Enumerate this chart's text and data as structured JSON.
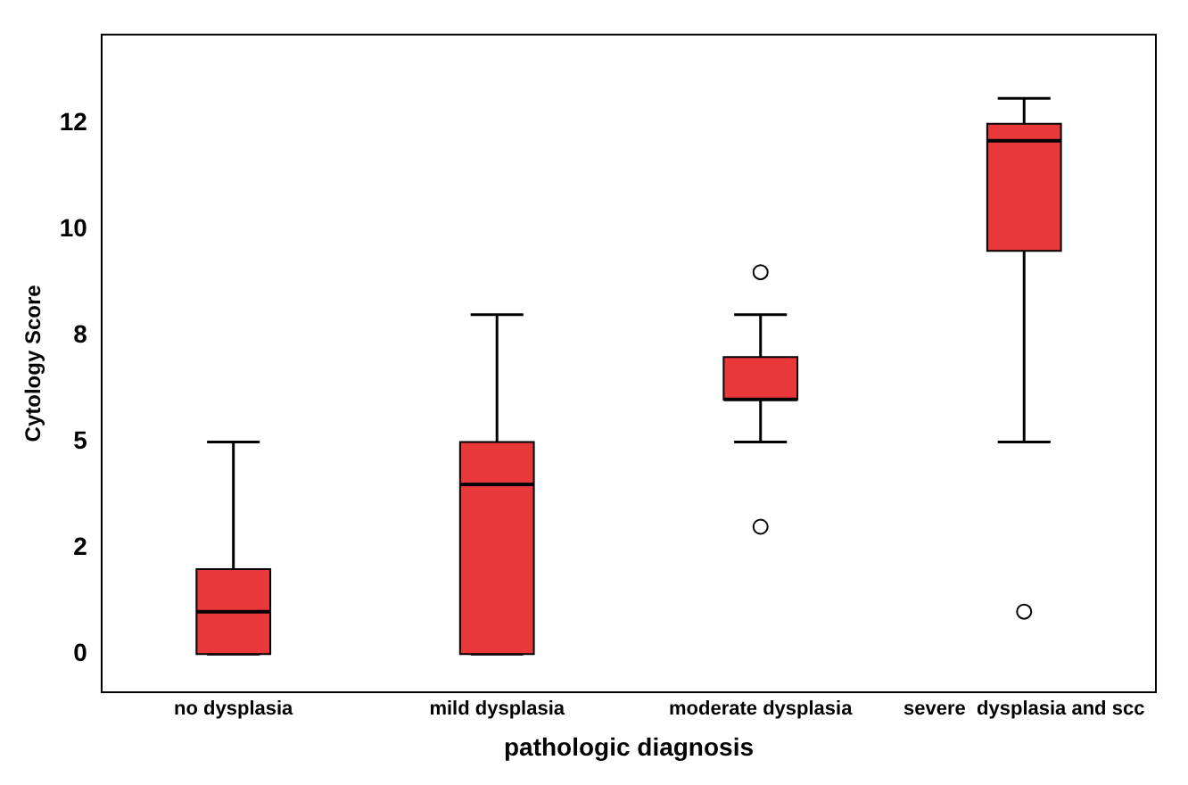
{
  "chart_data": {
    "type": "box",
    "xlabel": "pathologic diagnosis",
    "ylabel": "Cytology Score",
    "categories": [
      "no dysplasia",
      "mild dysplasia",
      "moderate dysplasia",
      "severe  dysplasia and scc"
    ],
    "color": "#e8383a",
    "boxes": [
      {
        "low": 0,
        "q1": 0,
        "median": 1.0,
        "q3": 2.0,
        "high": 5.0
      },
      {
        "low": 0,
        "q1": 0,
        "median": 4.0,
        "q3": 5.0,
        "high": 8.0
      },
      {
        "low": 5.0,
        "q1": 6.0,
        "median": 6.0,
        "q3": 7.0,
        "high": 8.0,
        "outliers": [
          9.0,
          3.0
        ]
      },
      {
        "low": 5.0,
        "q1": 9.5,
        "median": 12.1,
        "q3": 12.5,
        "high": 13.1,
        "outliers": [
          1.0
        ]
      }
    ],
    "ylim": [
      -0.9,
      14.6
    ],
    "yticks": [
      0,
      {
        "value": 2.5,
        "label": "2"
      },
      5,
      {
        "value": 7.5,
        "label": "8"
      },
      10,
      {
        "value": 12.5,
        "label": "12"
      }
    ],
    "grid": false,
    "legend": false
  }
}
